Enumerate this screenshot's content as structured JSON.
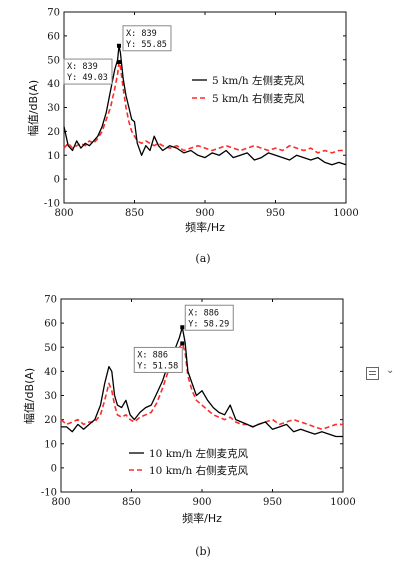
{
  "chart_data": [
    {
      "type": "line",
      "xlabel": "频率/Hz",
      "ylabel": "幅值/dB(A)",
      "caption": "(a)",
      "xlim": [
        800,
        1000
      ],
      "ylim": [
        -10,
        70
      ],
      "xticks": [
        800,
        850,
        900,
        950,
        1000
      ],
      "yticks": [
        -10,
        0,
        10,
        20,
        30,
        40,
        50,
        60,
        70
      ],
      "legend_position": "top-right",
      "series": [
        {
          "name": "5 km/h 左侧麦克风",
          "color": "#000000",
          "style": "solid",
          "x": [
            800,
            803,
            806,
            809,
            812,
            815,
            818,
            821,
            824,
            827,
            830,
            833,
            836,
            838,
            839,
            840,
            842,
            844,
            846,
            848,
            850,
            852,
            855,
            858,
            861,
            864,
            867,
            870,
            875,
            880,
            885,
            890,
            895,
            900,
            905,
            910,
            915,
            920,
            925,
            930,
            935,
            940,
            945,
            950,
            955,
            960,
            965,
            970,
            975,
            980,
            985,
            990,
            995,
            1000
          ],
          "y": [
            22,
            14,
            12,
            16,
            13,
            15,
            14,
            16,
            18,
            22,
            28,
            37,
            46,
            50,
            55.85,
            53,
            42,
            35,
            30,
            25,
            24,
            15,
            10,
            14,
            12,
            18,
            14,
            12,
            14,
            13,
            11,
            12,
            10,
            9,
            11,
            10,
            12,
            9,
            10,
            11,
            8,
            9,
            11,
            10,
            9,
            8,
            10,
            9,
            8,
            9,
            7,
            6,
            7,
            6
          ]
        },
        {
          "name": "5 km/h 右侧麦克风",
          "color": "#ff2a2a",
          "style": "dashed",
          "x": [
            800,
            803,
            806,
            809,
            812,
            815,
            818,
            821,
            824,
            827,
            830,
            833,
            836,
            838,
            839,
            840,
            842,
            844,
            846,
            848,
            850,
            852,
            855,
            858,
            861,
            864,
            867,
            870,
            875,
            880,
            885,
            890,
            895,
            900,
            905,
            910,
            915,
            920,
            925,
            930,
            935,
            940,
            945,
            950,
            955,
            960,
            965,
            970,
            975,
            980,
            985,
            990,
            995,
            1000
          ],
          "y": [
            13,
            15,
            13,
            14,
            15,
            14,
            16,
            15,
            17,
            20,
            25,
            30,
            38,
            44,
            49.03,
            47,
            38,
            30,
            24,
            20,
            18,
            16,
            15,
            16,
            15,
            14,
            15,
            14,
            13,
            14,
            12,
            13,
            14,
            13,
            12,
            13,
            14,
            13,
            12,
            13,
            14,
            13,
            12,
            13,
            12,
            14,
            13,
            12,
            13,
            11,
            12,
            11,
            12,
            12
          ]
        }
      ],
      "annotations": [
        {
          "x": 839,
          "y": 49.03,
          "text_x": "X: 839",
          "text_y": "Y: 49.03"
        },
        {
          "x": 839,
          "y": 55.85,
          "text_x": "X: 839",
          "text_y": "Y: 55.85"
        }
      ]
    },
    {
      "type": "line",
      "xlabel": "频率/Hz",
      "ylabel": "幅值/dB(A)",
      "caption": "(b)",
      "xlim": [
        800,
        1000
      ],
      "ylim": [
        -10,
        70
      ],
      "xticks": [
        800,
        850,
        900,
        950,
        1000
      ],
      "yticks": [
        -10,
        0,
        10,
        20,
        30,
        40,
        50,
        60,
        70
      ],
      "legend_position": "bottom-center",
      "series": [
        {
          "name": "10 km/h 左侧麦克风",
          "color": "#000000",
          "style": "solid",
          "x": [
            800,
            804,
            808,
            812,
            816,
            820,
            824,
            828,
            831,
            834,
            836,
            838,
            840,
            843,
            846,
            849,
            852,
            856,
            860,
            864,
            868,
            872,
            876,
            879,
            882,
            884,
            886,
            888,
            890,
            893,
            896,
            900,
            904,
            908,
            912,
            916,
            920,
            924,
            928,
            932,
            936,
            940,
            945,
            950,
            955,
            960,
            965,
            970,
            975,
            980,
            985,
            990,
            995,
            1000
          ],
          "y": [
            17,
            17,
            15,
            18,
            16,
            18,
            20,
            26,
            35,
            42,
            40,
            30,
            26,
            25,
            28,
            22,
            20,
            23,
            25,
            26,
            31,
            36,
            43,
            46,
            51,
            54,
            58.29,
            52,
            40,
            35,
            30,
            32,
            28,
            25,
            23,
            22,
            26,
            20,
            19,
            18,
            17,
            18,
            19,
            16,
            17,
            18,
            15,
            16,
            15,
            14,
            15,
            14,
            13,
            13
          ]
        },
        {
          "name": "10 km/h 右侧麦克风",
          "color": "#ff2a2a",
          "style": "dashed",
          "x": [
            800,
            804,
            808,
            812,
            816,
            820,
            824,
            828,
            831,
            834,
            836,
            838,
            840,
            843,
            846,
            849,
            852,
            856,
            860,
            864,
            868,
            872,
            876,
            879,
            882,
            884,
            886,
            888,
            890,
            893,
            896,
            900,
            904,
            908,
            912,
            916,
            920,
            924,
            928,
            932,
            936,
            940,
            945,
            950,
            955,
            960,
            965,
            970,
            975,
            980,
            985,
            990,
            995,
            1000
          ],
          "y": [
            20,
            18,
            19,
            20,
            18,
            19,
            19,
            22,
            28,
            35,
            32,
            26,
            22,
            21,
            22,
            20,
            19,
            21,
            22,
            23,
            27,
            33,
            40,
            44,
            48,
            50,
            51.58,
            48,
            38,
            32,
            28,
            26,
            24,
            22,
            21,
            20,
            21,
            19,
            18,
            18,
            17,
            18,
            19,
            20,
            18,
            19,
            20,
            19,
            18,
            17,
            16,
            17,
            18,
            18
          ]
        }
      ],
      "annotations": [
        {
          "x": 886,
          "y": 51.58,
          "text_x": "X: 886",
          "text_y": "Y: 51.58"
        },
        {
          "x": 886,
          "y": 58.29,
          "text_x": "X: 886",
          "text_y": "Y: 58.29"
        }
      ]
    }
  ]
}
